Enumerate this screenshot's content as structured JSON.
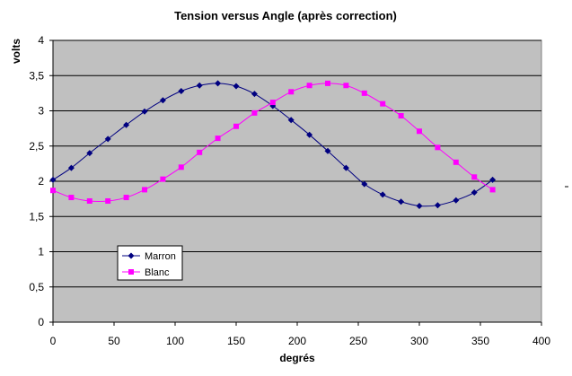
{
  "chart_data": {
    "type": "line",
    "title": "Tension versus Angle (après correction)",
    "xlabel": "degrés",
    "ylabel": "volts",
    "xlim": [
      0,
      400
    ],
    "ylim": [
      0,
      4
    ],
    "x_ticks": [
      "0",
      "50",
      "100",
      "150",
      "200",
      "250",
      "300",
      "350",
      "400"
    ],
    "y_ticks": [
      "0",
      "0,5",
      "1",
      "1,5",
      "2",
      "2,5",
      "3",
      "3,5",
      "4"
    ],
    "grid": "horizontal",
    "plot_background": "#c0c0c0",
    "legend_position": "lower-left",
    "x": [
      0,
      15,
      30,
      45,
      60,
      75,
      90,
      105,
      120,
      135,
      150,
      165,
      180,
      195,
      210,
      225,
      240,
      255,
      270,
      285,
      300,
      315,
      330,
      345,
      360
    ],
    "series": [
      {
        "name": "Marron",
        "color": "#000080",
        "marker": "diamond",
        "values": [
          2.02,
          2.19,
          2.4,
          2.6,
          2.8,
          2.99,
          3.15,
          3.28,
          3.36,
          3.39,
          3.35,
          3.24,
          3.07,
          2.87,
          2.66,
          2.43,
          2.19,
          1.96,
          1.81,
          1.71,
          1.65,
          1.66,
          1.73,
          1.84,
          2.02
        ]
      },
      {
        "name": "Blanc",
        "color": "#ff00ff",
        "marker": "square",
        "values": [
          1.87,
          1.77,
          1.72,
          1.72,
          1.77,
          1.88,
          2.03,
          2.2,
          2.41,
          2.61,
          2.78,
          2.97,
          3.12,
          3.27,
          3.36,
          3.39,
          3.36,
          3.25,
          3.1,
          2.93,
          2.71,
          2.48,
          2.27,
          2.06,
          1.88
        ]
      }
    ]
  }
}
